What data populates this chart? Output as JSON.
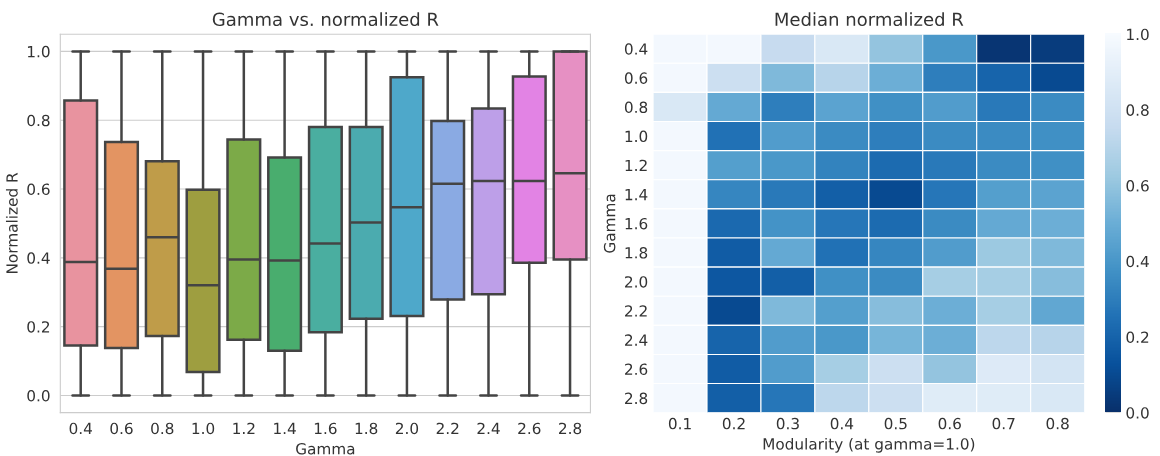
{
  "chart_data": [
    {
      "type": "box",
      "title": "Gamma vs. normalized R",
      "xlabel": "Gamma",
      "ylabel": "Normalized R",
      "categories": [
        "0.4",
        "0.6",
        "0.8",
        "1.0",
        "1.2",
        "1.4",
        "1.6",
        "1.8",
        "2.0",
        "2.2",
        "2.4",
        "2.6",
        "2.8"
      ],
      "boxes": [
        {
          "low": 0.0,
          "q1": 0.145,
          "median": 0.388,
          "q3": 0.857,
          "high": 1.0
        },
        {
          "low": 0.0,
          "q1": 0.138,
          "median": 0.368,
          "q3": 0.737,
          "high": 1.0
        },
        {
          "low": 0.0,
          "q1": 0.173,
          "median": 0.46,
          "q3": 0.681,
          "high": 1.0
        },
        {
          "low": 0.0,
          "q1": 0.068,
          "median": 0.32,
          "q3": 0.598,
          "high": 1.0
        },
        {
          "low": 0.0,
          "q1": 0.162,
          "median": 0.395,
          "q3": 0.744,
          "high": 1.0
        },
        {
          "low": 0.0,
          "q1": 0.13,
          "median": 0.392,
          "q3": 0.692,
          "high": 1.0
        },
        {
          "low": 0.0,
          "q1": 0.184,
          "median": 0.442,
          "q3": 0.78,
          "high": 1.0
        },
        {
          "low": 0.0,
          "q1": 0.223,
          "median": 0.503,
          "q3": 0.78,
          "high": 1.0
        },
        {
          "low": 0.0,
          "q1": 0.231,
          "median": 0.547,
          "q3": 0.925,
          "high": 1.0
        },
        {
          "low": 0.0,
          "q1": 0.279,
          "median": 0.615,
          "q3": 0.798,
          "high": 1.0
        },
        {
          "low": 0.0,
          "q1": 0.294,
          "median": 0.623,
          "q3": 0.834,
          "high": 1.0
        },
        {
          "low": 0.0,
          "q1": 0.386,
          "median": 0.623,
          "q3": 0.927,
          "high": 1.0
        },
        {
          "low": 0.0,
          "q1": 0.395,
          "median": 0.646,
          "q3": 1.0,
          "high": 1.0
        }
      ],
      "colors": [
        "#e8939f",
        "#e39462",
        "#bf9c49",
        "#9e9e40",
        "#7caa48",
        "#49ad6e",
        "#4aaea0",
        "#4babaf",
        "#4ea8ca",
        "#8aaae3",
        "#bd9fe8",
        "#e283e4",
        "#e690c3"
      ],
      "ylim": [
        -0.05,
        1.05
      ],
      "yticks": [
        {
          "value": 0.0,
          "label": "0.0"
        },
        0.2,
        0.4,
        0.6,
        0.8,
        {
          "value": 1.0,
          "label": "1.0"
        }
      ],
      "grid": "y"
    },
    {
      "type": "heatmap",
      "title": "Median normalized R",
      "xlabel": "Modularity (at gamma=1.0)",
      "ylabel": "Gamma",
      "categories": [
        "0.1",
        "0.2",
        "0.3",
        "0.4",
        "0.5",
        "0.6",
        "0.7",
        "0.8"
      ],
      "y_categories": [
        "0.4",
        "0.6",
        "0.8",
        "1.0",
        "1.2",
        "1.4",
        "1.6",
        "1.8",
        "2.0",
        "2.2",
        "2.4",
        "2.6",
        "2.8"
      ],
      "cells": [
        [
          0.98,
          0.98,
          0.75,
          0.85,
          0.6,
          0.4,
          0.02,
          0.05
        ],
        [
          0.98,
          0.78,
          0.55,
          0.7,
          0.5,
          0.3,
          0.2,
          0.1
        ],
        [
          0.85,
          0.48,
          0.3,
          0.45,
          0.37,
          0.42,
          0.28,
          0.35
        ],
        [
          0.98,
          0.25,
          0.42,
          0.35,
          0.3,
          0.35,
          0.35,
          0.37
        ],
        [
          0.98,
          0.43,
          0.4,
          0.32,
          0.23,
          0.28,
          0.35,
          0.37
        ],
        [
          0.98,
          0.33,
          0.28,
          0.18,
          0.1,
          0.27,
          0.43,
          0.45
        ],
        [
          0.98,
          0.22,
          0.38,
          0.27,
          0.23,
          0.35,
          0.48,
          0.5
        ],
        [
          0.98,
          0.17,
          0.48,
          0.25,
          0.33,
          0.42,
          0.62,
          0.55
        ],
        [
          0.98,
          0.15,
          0.18,
          0.37,
          0.35,
          0.65,
          0.65,
          0.57
        ],
        [
          0.98,
          0.1,
          0.55,
          0.43,
          0.57,
          0.5,
          0.65,
          0.47
        ],
        [
          0.98,
          0.2,
          0.42,
          0.4,
          0.53,
          0.5,
          0.72,
          0.7
        ],
        [
          0.98,
          0.17,
          0.42,
          0.65,
          0.78,
          0.6,
          0.87,
          0.82
        ],
        [
          0.98,
          0.18,
          0.27,
          0.72,
          0.78,
          0.88,
          0.88,
          0.85
        ]
      ],
      "clim": [
        0.0,
        1.0
      ],
      "cticks": [
        {
          "value": 0.0,
          "label": "0.0"
        },
        0.2,
        0.4,
        0.6,
        0.8,
        {
          "value": 1.0,
          "label": "1.0"
        }
      ]
    }
  ]
}
